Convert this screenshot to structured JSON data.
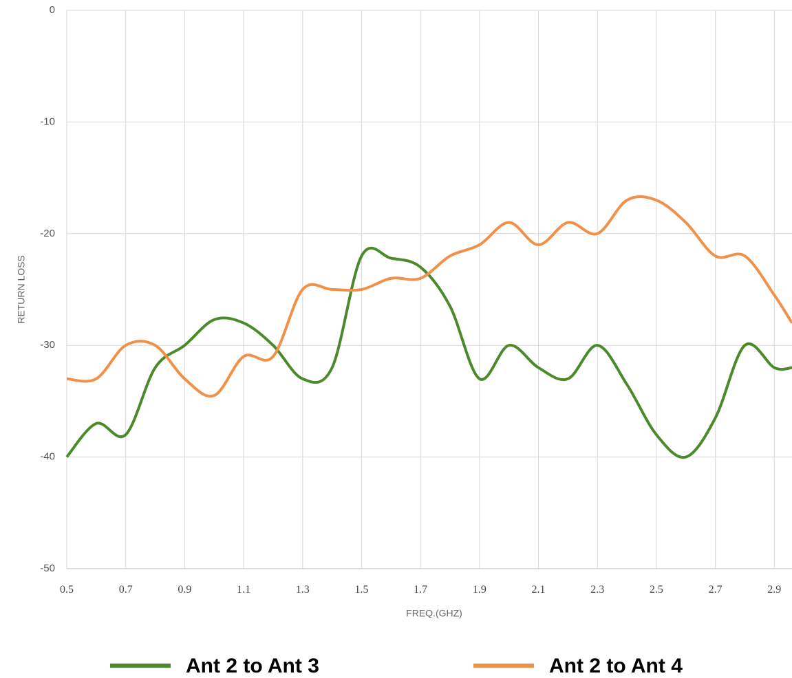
{
  "chart_data": {
    "type": "line",
    "x_label": "FREQ.(GHZ)",
    "y_label": "RETURN LOSS",
    "x": [
      0.5,
      0.6,
      0.7,
      0.8,
      0.9,
      1.0,
      1.1,
      1.2,
      1.3,
      1.4,
      1.5,
      1.6,
      1.7,
      1.8,
      1.9,
      2.0,
      2.1,
      2.2,
      2.3,
      2.4,
      2.5,
      2.6,
      2.7,
      2.8,
      2.9,
      2.96
    ],
    "series": [
      {
        "name": "Ant 2 to Ant 3",
        "color": "#4a8a2a",
        "values": [
          -40,
          -37,
          -38,
          -32,
          -30,
          -27.7,
          -28,
          -30,
          -33,
          -32,
          -22,
          -22.2,
          -23,
          -26.5,
          -33,
          -30,
          -32,
          -33,
          -30,
          -33.5,
          -38,
          -40,
          -36.5,
          -30,
          -32,
          -32
        ]
      },
      {
        "name": "Ant 2 to Ant 4",
        "color": "#f0914a",
        "values": [
          -33,
          -33,
          -30,
          -30,
          -33,
          -34.5,
          -31,
          -31,
          -25,
          -25,
          -25,
          -24,
          -24,
          -22,
          -21,
          -19,
          -21,
          -19,
          -20,
          -17,
          -17,
          -19,
          -22,
          -22,
          -25.5,
          -28
        ]
      }
    ],
    "xlim": [
      0.5,
      2.96
    ],
    "ylim": [
      -50,
      0
    ],
    "xticks": [
      0.5,
      0.7,
      0.9,
      1.1,
      1.3,
      1.5,
      1.7,
      1.9,
      2.1,
      2.3,
      2.5,
      2.7,
      2.9
    ],
    "yticks": [
      0,
      -10,
      -20,
      -30,
      -40,
      -50
    ],
    "grid": true,
    "legend": "bottom"
  }
}
